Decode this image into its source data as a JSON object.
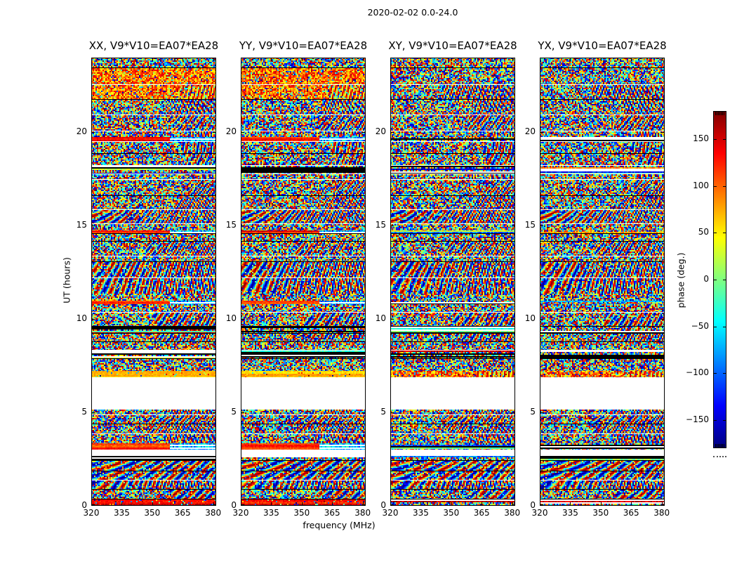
{
  "figure": {
    "title": "2020-02-02 0.0-24.0",
    "colors": {
      "background": "#ffffff",
      "frame": "#000000",
      "text": "#000000"
    }
  },
  "chart_data": {
    "type": "heatmap",
    "title": "2020-02-02 0.0-24.0",
    "xlabel": "frequency (MHz)",
    "ylabel": "UT (hours)",
    "x_ticks": [
      320,
      335,
      350,
      365,
      380
    ],
    "y_ticks": [
      0,
      5,
      10,
      15,
      20
    ],
    "x_range": [
      320,
      381.5
    ],
    "y_range": [
      0,
      24
    ],
    "grid": false,
    "panels": [
      {
        "title": "XX, V9*V10=EA07*EA28",
        "pol": "XX",
        "warm": true,
        "seed": 11
      },
      {
        "title": "YY, V9*V10=EA07*EA28",
        "pol": "YY",
        "warm": true,
        "seed": 23
      },
      {
        "title": "XY, V9*V10=EA07*EA28",
        "pol": "XY",
        "warm": false,
        "seed": 37
      },
      {
        "title": "YX, V9*V10=EA07*EA28",
        "pol": "YX",
        "warm": false,
        "seed": 51
      }
    ],
    "colorbar": {
      "label": "phase (deg.)",
      "ticks": [
        150,
        100,
        50,
        0,
        -50,
        -100,
        -150
      ],
      "range": [
        -180,
        180
      ],
      "colormap": "jet",
      "position": "right"
    },
    "data_description": "random-looking interferometric phase vs frequency and time; scan blocks separated by black lines and white gaps",
    "gaps_ut_hours": [
      [
        5.15,
        6.88
      ],
      [
        2.68,
        3.02
      ]
    ],
    "bands": [
      [
        24.0,
        23.45,
        "noise",
        "black"
      ],
      [
        23.45,
        22.55,
        "warm",
        "white"
      ],
      [
        22.55,
        21.75,
        "warm",
        "black"
      ],
      [
        21.75,
        20.9,
        "noise",
        "white"
      ],
      [
        20.9,
        20.05,
        "noise",
        "white"
      ],
      [
        20.05,
        19.75,
        "noise",
        "none"
      ],
      [
        19.75,
        19.5,
        "hot",
        "white"
      ],
      [
        19.5,
        18.85,
        "noise",
        "black"
      ],
      [
        18.85,
        18.2,
        "noise",
        "white"
      ],
      [
        18.2,
        17.75,
        "stripe",
        "white"
      ],
      [
        17.75,
        17.45,
        "noise",
        "white"
      ],
      [
        17.45,
        16.6,
        "noise",
        "black"
      ],
      [
        16.6,
        15.85,
        "noise",
        "white"
      ],
      [
        15.85,
        15.1,
        "fringe",
        "white"
      ],
      [
        15.1,
        14.75,
        "noise",
        "none"
      ],
      [
        14.75,
        14.55,
        "hot",
        "black"
      ],
      [
        14.55,
        14.15,
        "noise",
        "black"
      ],
      [
        14.15,
        13.35,
        "noise",
        "white"
      ],
      [
        13.35,
        13.05,
        "noise",
        "black2"
      ],
      [
        13.05,
        12.2,
        "fringe",
        "white"
      ],
      [
        12.2,
        11.35,
        "fringe",
        "none"
      ],
      [
        11.35,
        11.0,
        "noise",
        "none"
      ],
      [
        11.0,
        10.8,
        "hot",
        "none"
      ],
      [
        10.8,
        10.35,
        "noise",
        "white"
      ],
      [
        10.35,
        9.6,
        "noise",
        "black"
      ],
      [
        9.6,
        9.2,
        "stripe",
        "black"
      ],
      [
        9.2,
        8.75,
        "noise",
        "black"
      ],
      [
        8.75,
        8.3,
        "noise",
        "white"
      ],
      [
        8.3,
        7.85,
        "stripe",
        "black"
      ],
      [
        7.85,
        7.22,
        "noise",
        "none"
      ],
      [
        7.22,
        6.88,
        "hot2",
        "none"
      ],
      [
        6.88,
        5.15,
        "gap",
        "none"
      ],
      [
        5.15,
        4.85,
        "noise",
        "white"
      ],
      [
        4.85,
        4.35,
        "noise",
        "black"
      ],
      [
        4.35,
        3.85,
        "noise",
        "white"
      ],
      [
        3.85,
        3.35,
        "noise",
        "none"
      ],
      [
        3.35,
        3.02,
        "hot",
        "none"
      ],
      [
        3.02,
        2.68,
        "gap",
        "none"
      ],
      [
        2.68,
        2.4,
        "stripe",
        "black"
      ],
      [
        2.4,
        1.85,
        "fringe",
        "black"
      ],
      [
        1.85,
        1.35,
        "fringe",
        "white"
      ],
      [
        1.35,
        0.85,
        "fringe",
        "black"
      ],
      [
        0.85,
        0.35,
        "noise",
        "black"
      ],
      [
        0.35,
        0.0,
        "hot3",
        "none"
      ]
    ]
  }
}
